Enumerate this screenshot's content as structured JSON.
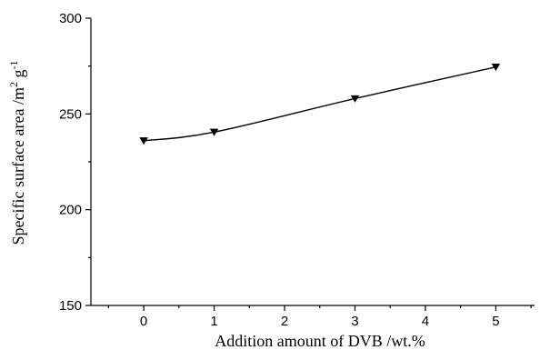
{
  "chart_data": {
    "type": "line",
    "title": "",
    "xlabel": "Addition amount of DVB /wt.%",
    "ylabel_main": "Specific surface area /m",
    "ylabel_sup1": "2",
    "ylabel_mid": " g",
    "ylabel_sup2": "-1",
    "xlim": [
      -0.75,
      5.55
    ],
    "ylim": [
      150,
      300
    ],
    "xticks": [
      0,
      1,
      2,
      3,
      4,
      5
    ],
    "xtick_labels": [
      "0",
      "1",
      "2",
      "3",
      "4",
      "5"
    ],
    "yticks": [
      150,
      200,
      250,
      300
    ],
    "ytick_labels": [
      "150",
      "200",
      "250",
      "300"
    ],
    "grid": false,
    "series": [
      {
        "x": [
          0,
          1,
          3,
          5
        ],
        "y": [
          236,
          240.5,
          258,
          274.5
        ],
        "marker": "down-triangle",
        "color": "#000000"
      }
    ]
  }
}
